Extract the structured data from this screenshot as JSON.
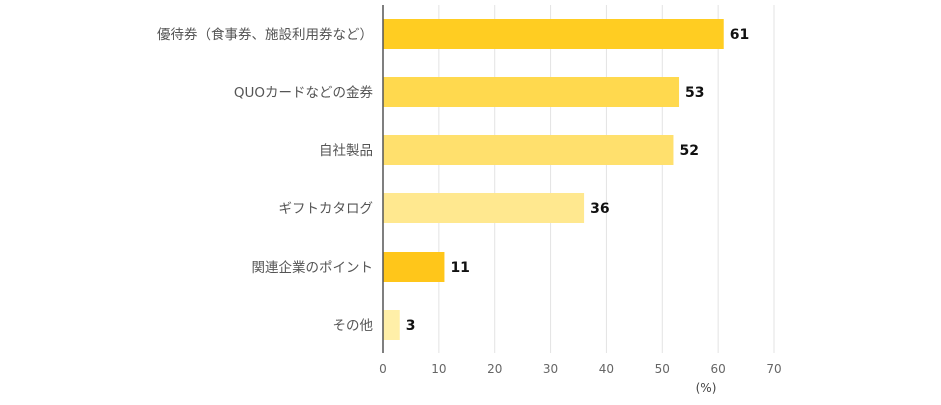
{
  "chart_data": {
    "type": "bar",
    "orientation": "horizontal",
    "categories": [
      "優待券（食事券、施設利用券など）",
      "QUOカードなどの金券",
      "自社製品",
      "ギフトカタログ",
      "関連企業のポイント",
      "その他"
    ],
    "values": [
      61,
      53,
      52,
      36,
      11,
      3
    ],
    "bar_colors": [
      "#FFCD22",
      "#FFD94E",
      "#FFE06D",
      "#FFE88F",
      "#FFC61A",
      "#FFEFA8"
    ],
    "xlim": [
      0,
      70
    ],
    "x_ticks": [
      0,
      10,
      20,
      30,
      40,
      50,
      60,
      70
    ],
    "x_unit": "(%)",
    "grid": true,
    "grid_color": "#e3e3e3",
    "axis_color": "#555555"
  }
}
